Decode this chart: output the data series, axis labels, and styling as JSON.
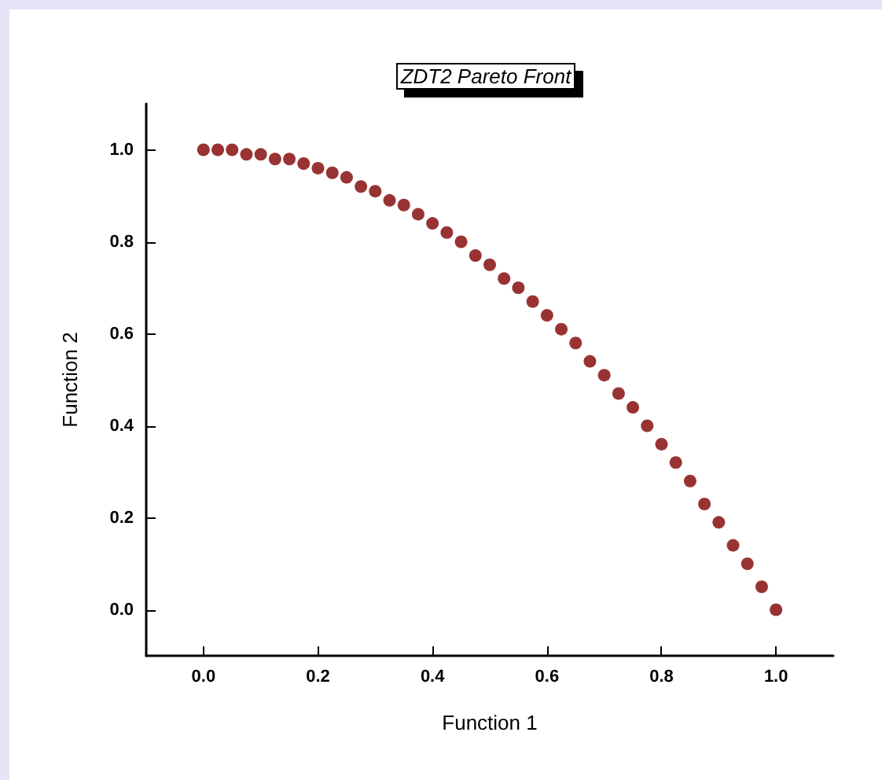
{
  "chart_data": {
    "type": "scatter",
    "title": "ZDT2 Pareto Front",
    "xlabel": "Function 1",
    "ylabel": "Function 2",
    "marker": "circle",
    "grid": false,
    "xlim": [
      -0.1,
      1.1
    ],
    "xticks": [
      {
        "value": 0,
        "label": "0.0"
      },
      0.2,
      0.4,
      0.6,
      0.8,
      {
        "value": 1,
        "label": "1.0"
      }
    ],
    "ylim": [
      -0.1,
      1.1
    ],
    "yticks": [
      {
        "value": 0,
        "label": "0.0"
      },
      0.2,
      0.4,
      0.6,
      0.8,
      {
        "value": 1,
        "label": "1.0"
      }
    ],
    "series": [
      {
        "color": "#800000",
        "x": [
          0,
          0.025,
          0.05,
          0.075,
          0.1,
          0.125,
          0.15,
          0.175,
          0.2,
          0.225,
          0.25,
          0.275,
          0.3,
          0.325,
          0.35,
          0.375,
          0.4,
          0.425,
          0.45,
          0.475,
          0.5,
          0.525,
          0.55,
          0.575,
          0.6,
          0.625,
          0.65,
          0.675,
          0.7,
          0.725,
          0.75,
          0.775,
          0.8,
          0.825,
          0.85,
          0.875,
          0.9,
          0.925,
          0.95,
          0.975,
          1
        ],
        "values": [
          1,
          1,
          1,
          0.99,
          0.99,
          0.98,
          0.98,
          0.97,
          0.96,
          0.95,
          0.94,
          0.92,
          0.91,
          0.89,
          0.88,
          0.86,
          0.84,
          0.82,
          0.8,
          0.77,
          0.75,
          0.72,
          0.7,
          0.67,
          0.64,
          0.61,
          0.58,
          0.54,
          0.51,
          0.47,
          0.44,
          0.4,
          0.36,
          0.32,
          0.28,
          0.23,
          0.19,
          0.14,
          0.1,
          0.05,
          0
        ]
      }
    ]
  }
}
